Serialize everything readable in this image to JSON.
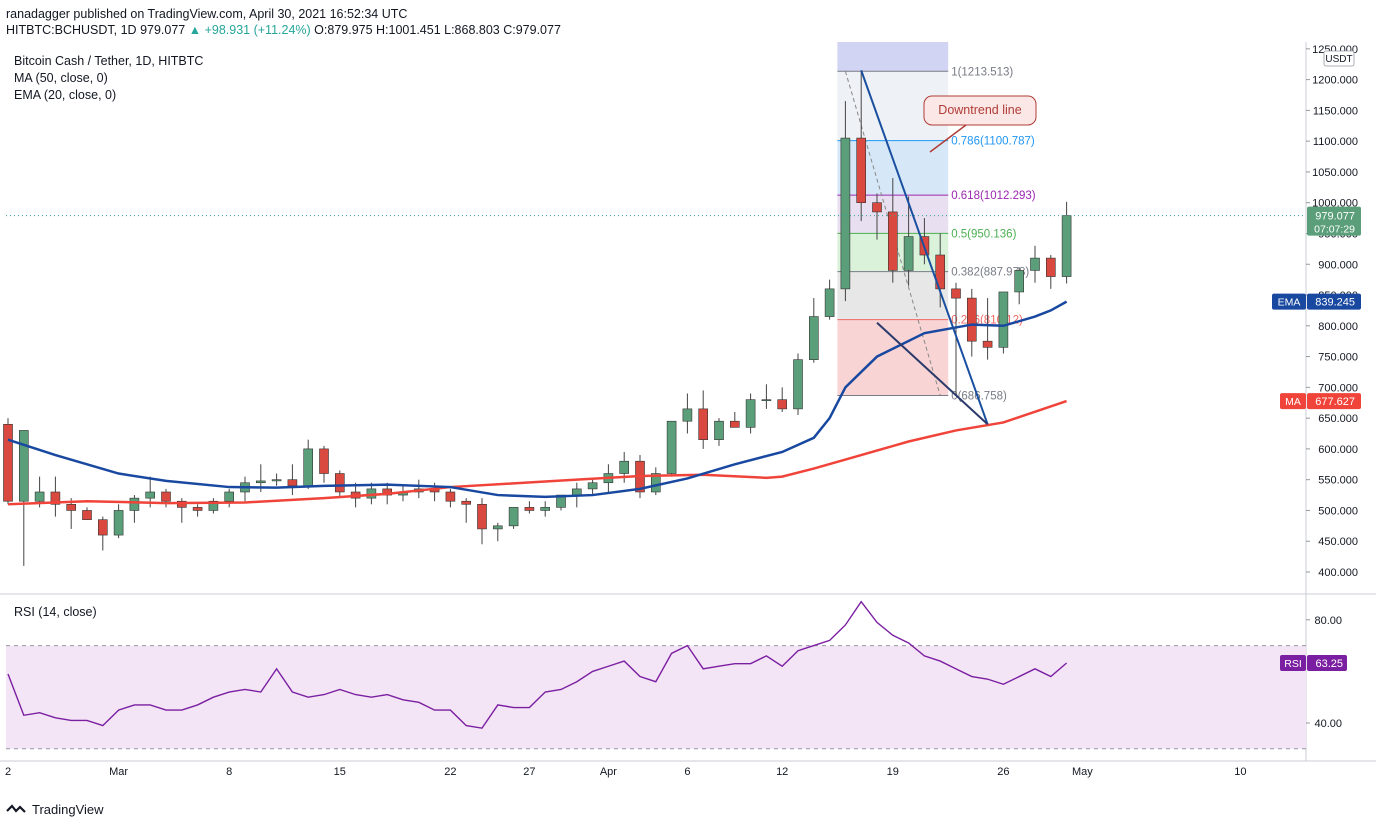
{
  "header": {
    "author_line": "ranadagger published on TradingView.com, April 30, 2021 16:52:34 UTC",
    "symbol": "HITBTC:BCHUSDT, 1D",
    "price": "979.077",
    "change": "▲ +98.931 (+11.24%)",
    "ohlc": "O:879.975 H:1001.451 L:868.803 C:979.077"
  },
  "legend": {
    "title": "Bitcoin Cash / Tether, 1D, HITBTC",
    "ma": "MA (50, close, 0)",
    "ema": "EMA (20, close, 0)"
  },
  "rsi_legend": "RSI (14, close)",
  "footer": {
    "brand": "TradingView"
  },
  "colors": {
    "up": "#26a69a",
    "up_fill": "#5b9f7a",
    "down": "#ef5350",
    "down_fill": "#d9493f",
    "ema": "#1848a0",
    "ma": "#f0443a",
    "rsi": "#7b1fa2",
    "rsi_band": "#f3e5f5",
    "downtrend": "#1a4fa0"
  },
  "chart_data": [
    {
      "type": "candlestick",
      "title": "Bitcoin Cash / Tether, 1D, HITBTC",
      "unit": "USDT",
      "ylim": [
        370,
        1250
      ],
      "y_ticks": [
        400,
        450,
        500,
        550,
        600,
        650,
        700,
        750,
        800,
        850,
        900,
        950,
        1000,
        1050,
        1100,
        1150,
        1200,
        1250
      ],
      "y_tick_labels": [
        "400.000",
        "450.000",
        "500.000",
        "550.000",
        "600.000",
        "650.000",
        "700.000",
        "750.000",
        "800.000",
        "850.000",
        "900.000",
        "950.000",
        "1000.000",
        "1050.000",
        "1100.000",
        "1150.000",
        "1200.000",
        "1250.000"
      ],
      "x_tick_labels": [
        {
          "label": "2",
          "day": 0
        },
        {
          "label": "Mar",
          "day": 7
        },
        {
          "label": "8",
          "day": 14
        },
        {
          "label": "15",
          "day": 21
        },
        {
          "label": "22",
          "day": 28
        },
        {
          "label": "27",
          "day": 33
        },
        {
          "label": "Apr",
          "day": 38
        },
        {
          "label": "6",
          "day": 43
        },
        {
          "label": "12",
          "day": 49
        },
        {
          "label": "19",
          "day": 56
        },
        {
          "label": "26",
          "day": 63
        },
        {
          "label": "May",
          "day": 68
        },
        {
          "label": "10",
          "day": 78
        }
      ],
      "candles": [
        [
          640,
          650,
          510,
          515
        ],
        [
          515,
          630,
          410,
          630
        ],
        [
          515,
          555,
          505,
          530
        ],
        [
          530,
          555,
          490,
          510
        ],
        [
          510,
          520,
          470,
          500
        ],
        [
          500,
          505,
          485,
          485
        ],
        [
          485,
          490,
          435,
          460
        ],
        [
          460,
          510,
          455,
          500
        ],
        [
          500,
          525,
          480,
          520
        ],
        [
          520,
          555,
          505,
          530
        ],
        [
          530,
          535,
          505,
          515
        ],
        [
          515,
          520,
          480,
          505
        ],
        [
          505,
          510,
          490,
          500
        ],
        [
          500,
          520,
          495,
          515
        ],
        [
          515,
          535,
          505,
          530
        ],
        [
          530,
          555,
          515,
          545
        ],
        [
          545,
          575,
          530,
          548
        ],
        [
          548,
          560,
          540,
          550
        ],
        [
          550,
          575,
          525,
          540
        ],
        [
          540,
          615,
          535,
          600
        ],
        [
          600,
          605,
          545,
          560
        ],
        [
          560,
          565,
          520,
          530
        ],
        [
          530,
          545,
          505,
          520
        ],
        [
          520,
          545,
          510,
          535
        ],
        [
          535,
          545,
          510,
          525
        ],
        [
          525,
          540,
          515,
          530
        ],
        [
          530,
          550,
          520,
          535
        ],
        [
          535,
          545,
          515,
          530
        ],
        [
          530,
          535,
          505,
          515
        ],
        [
          515,
          520,
          480,
          510
        ],
        [
          510,
          520,
          445,
          470
        ],
        [
          470,
          480,
          450,
          475
        ],
        [
          475,
          505,
          470,
          505
        ],
        [
          505,
          515,
          495,
          500
        ],
        [
          500,
          515,
          490,
          505
        ],
        [
          505,
          525,
          500,
          525
        ],
        [
          525,
          545,
          505,
          535
        ],
        [
          535,
          550,
          525,
          545
        ],
        [
          545,
          575,
          530,
          560
        ],
        [
          560,
          595,
          545,
          580
        ],
        [
          580,
          590,
          520,
          530
        ],
        [
          530,
          570,
          525,
          560
        ],
        [
          560,
          645,
          555,
          645
        ],
        [
          645,
          690,
          625,
          665
        ],
        [
          665,
          695,
          600,
          615
        ],
        [
          615,
          650,
          605,
          645
        ],
        [
          645,
          660,
          635,
          635
        ],
        [
          635,
          690,
          625,
          680
        ],
        [
          680,
          705,
          665,
          680
        ],
        [
          680,
          700,
          660,
          665
        ],
        [
          665,
          755,
          655,
          745
        ],
        [
          745,
          845,
          740,
          815
        ],
        [
          815,
          875,
          810,
          860
        ],
        [
          860,
          1165,
          840,
          1105
        ],
        [
          1105,
          1215,
          970,
          1000
        ],
        [
          1000,
          1015,
          940,
          985
        ],
        [
          985,
          1040,
          870,
          890
        ],
        [
          890,
          1010,
          865,
          945
        ],
        [
          945,
          975,
          900,
          915
        ],
        [
          915,
          950,
          830,
          860
        ],
        [
          860,
          870,
          690,
          845
        ],
        [
          845,
          860,
          750,
          775
        ],
        [
          775,
          845,
          745,
          765
        ],
        [
          765,
          850,
          755,
          855
        ],
        [
          855,
          895,
          835,
          890
        ],
        [
          890,
          930,
          870,
          910
        ],
        [
          910,
          915,
          860,
          880
        ],
        [
          880,
          1001.451,
          868.803,
          979.077
        ]
      ],
      "candles_format": [
        "open",
        "high",
        "low",
        "close"
      ],
      "ema20_label": "EMA",
      "ema20_last": "839.245",
      "ema20": [
        [
          0,
          615
        ],
        [
          3,
          590
        ],
        [
          7,
          560
        ],
        [
          10,
          548
        ],
        [
          14,
          538
        ],
        [
          17,
          537
        ],
        [
          20,
          540
        ],
        [
          24,
          542
        ],
        [
          28,
          538
        ],
        [
          31,
          525
        ],
        [
          34,
          522
        ],
        [
          37,
          525
        ],
        [
          40,
          535
        ],
        [
          43,
          552
        ],
        [
          46,
          575
        ],
        [
          49,
          595
        ],
        [
          51,
          618
        ],
        [
          52,
          650
        ],
        [
          53,
          700
        ],
        [
          55,
          750
        ],
        [
          58,
          788
        ],
        [
          61,
          802
        ],
        [
          63,
          800
        ],
        [
          65,
          815
        ],
        [
          66,
          825
        ],
        [
          67,
          839.245
        ]
      ],
      "ma50_label": "MA",
      "ma50_last": "677.627",
      "ma50": [
        [
          0,
          510
        ],
        [
          5,
          515
        ],
        [
          10,
          512
        ],
        [
          15,
          513
        ],
        [
          20,
          520
        ],
        [
          24,
          527
        ],
        [
          28,
          538
        ],
        [
          32,
          544
        ],
        [
          36,
          550
        ],
        [
          40,
          556
        ],
        [
          44,
          558
        ],
        [
          48,
          553
        ],
        [
          49,
          555
        ],
        [
          51,
          568
        ],
        [
          54,
          590
        ],
        [
          57,
          612
        ],
        [
          60,
          630
        ],
        [
          63,
          643
        ],
        [
          67,
          677.627
        ]
      ],
      "price_label": "979.077",
      "price_countdown": "07:07:29",
      "fibonacci": {
        "start_day": 53,
        "end_day": 59,
        "labels_day": 59,
        "levels": [
          {
            "label": "1(1213.513)",
            "value": 1213.513,
            "color": "#787b86",
            "fill": "#eceff4"
          },
          {
            "label": "0.786(1100.787)",
            "value": 1100.787,
            "color": "#2196f3",
            "fill": "#d2e6f7"
          },
          {
            "label": "0.618(1012.293)",
            "value": 1012.293,
            "color": "#9c27b0",
            "fill": "#e6dcef"
          },
          {
            "label": "0.5(950.136)",
            "value": 950.136,
            "color": "#4caf50",
            "fill": "#d6f0d6"
          },
          {
            "label": "0.382(887.978)",
            "value": 887.978,
            "color": "#787b86",
            "fill": "#e4e4e6"
          },
          {
            "label": "0.236(810.12)",
            "value": 810.12,
            "color": "#f06862",
            "fill": "#f7cfcf"
          },
          {
            "label": "0(686.758)",
            "value": 686.758,
            "color": "#787b86",
            "fill": null
          }
        ]
      },
      "annotation": "Downtrend line",
      "downtrend_line": [
        [
          54,
          1215
        ],
        [
          62,
          640
        ]
      ],
      "cross_line": [
        [
          55,
          805
        ],
        [
          62,
          640
        ]
      ]
    },
    {
      "type": "line",
      "title": "RSI (14, close)",
      "ylim": [
        27,
        90
      ],
      "y_ticks": [
        40,
        80
      ],
      "y_tick_labels": [
        "40.00",
        "80.00"
      ],
      "band": [
        30,
        70
      ],
      "last_label": "RSI",
      "last_value": "63.25",
      "values": [
        59,
        43,
        44,
        42,
        41,
        41,
        39,
        45,
        47,
        47,
        45,
        45,
        47,
        50,
        52,
        53,
        52,
        61,
        52,
        50,
        51,
        53,
        51,
        50,
        51,
        49,
        48,
        45,
        45,
        39,
        38,
        47,
        46,
        46,
        52,
        53,
        56,
        60,
        62,
        64,
        58,
        56,
        67,
        70,
        61,
        62,
        63,
        63,
        66,
        62,
        68,
        70,
        72,
        78,
        87,
        79,
        74,
        71,
        66,
        64,
        61,
        58,
        57,
        55,
        58,
        61,
        58,
        63.25
      ]
    }
  ]
}
